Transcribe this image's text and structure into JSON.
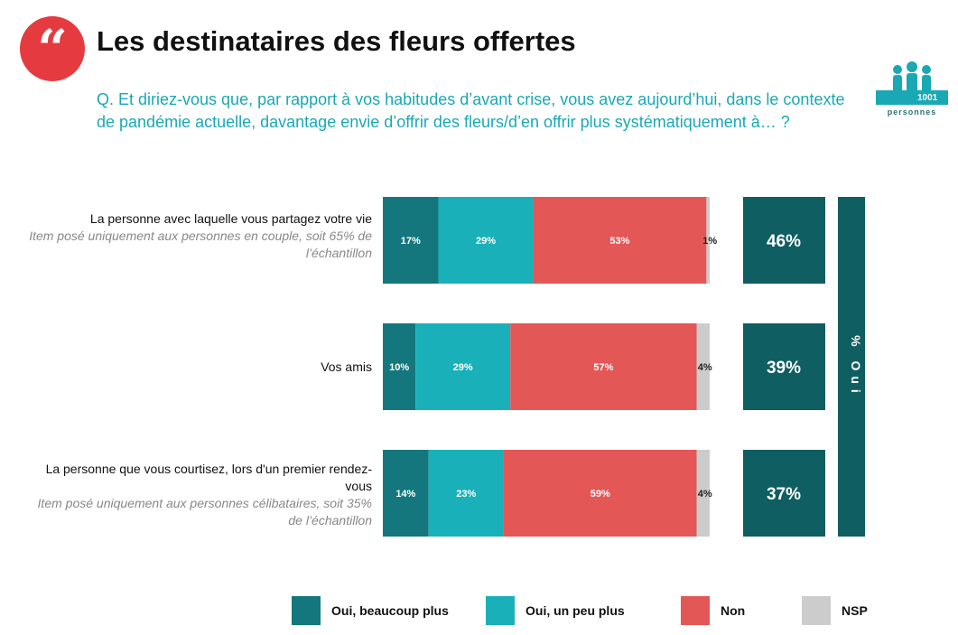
{
  "header": {
    "title": "Les destinataires des fleurs offertes",
    "quote_glyph": "“",
    "question": "Q. Et diriez-vous que, par rapport à vos habitudes d’avant crise, vous avez aujourd’hui, dans le contexte de pandémie actuelle, davantage envie d’offrir des fleurs/d’en offrir plus systématiquement à… ?"
  },
  "logo": {
    "number": "1001",
    "text": "personnes",
    "icon": "people-icon"
  },
  "rows": [
    {
      "label": "La personne avec laquelle vous partagez votre vie",
      "note": "Item posé uniquement aux personnes en couple, soit 65% de l’échantillon"
    },
    {
      "label": "Vos amis",
      "note": ""
    },
    {
      "label": "La personne que vous courtisez, lors d'un premier rendez-vous",
      "note": "Item posé uniquement aux personnes célibataires, soit 35% de l’échantillon"
    }
  ],
  "totals_axis_label": "% Oui",
  "legend": [
    {
      "label": "Oui, beaucoup plus",
      "color": "#13777d"
    },
    {
      "label": "Oui, un peu plus",
      "color": "#1ab0b9"
    },
    {
      "label": "Non",
      "color": "#e45757"
    },
    {
      "label": "NSP",
      "color": "#cccccc"
    }
  ],
  "chart_data": {
    "type": "bar",
    "orientation": "horizontal",
    "stacked": true,
    "categories": [
      "La personne avec laquelle vous partagez votre vie",
      "Vos amis",
      "La personne que vous courtisez, lors d'un premier rendez-vous"
    ],
    "series": [
      {
        "name": "Oui, beaucoup plus",
        "color": "#13777d",
        "values": [
          17,
          10,
          14
        ]
      },
      {
        "name": "Oui, un peu plus",
        "color": "#1ab0b9",
        "values": [
          29,
          29,
          23
        ]
      },
      {
        "name": "Non",
        "color": "#e45757",
        "values": [
          53,
          57,
          59
        ]
      },
      {
        "name": "NSP",
        "color": "#cccccc",
        "values": [
          1,
          4,
          4
        ]
      }
    ],
    "data_labels": [
      [
        "17%",
        "29%",
        "53%",
        "1%"
      ],
      [
        "10%",
        "29%",
        "57%",
        "4%"
      ],
      [
        "14%",
        "23%",
        "59%",
        "4%"
      ]
    ],
    "totals": {
      "name": "% Oui",
      "values": [
        46,
        39,
        37
      ],
      "labels": [
        "46%",
        "39%",
        "37%"
      ],
      "color": "#0f5e62"
    },
    "xlim": [
      0,
      100
    ],
    "legend_position": "bottom"
  }
}
